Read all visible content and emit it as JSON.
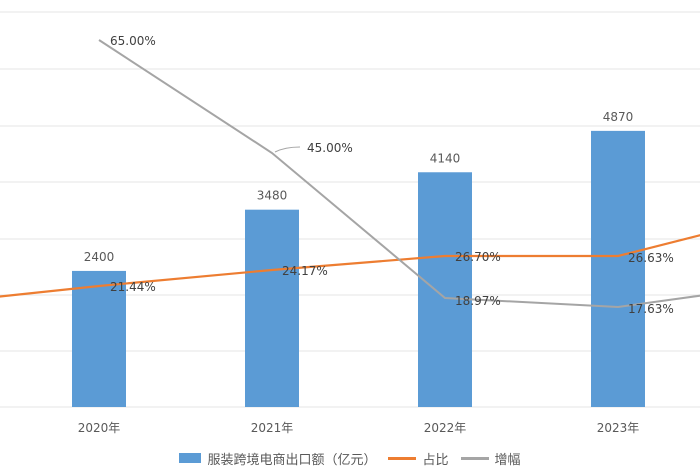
{
  "chart_data": {
    "type": "bar",
    "title": "",
    "xlabel": "",
    "ylabel": "",
    "categories": [
      "2020年",
      "2021年",
      "2022年",
      "2023年"
    ],
    "series": [
      {
        "name": "服装跨境电商出口额（亿元）",
        "kind": "bar",
        "axis": "left",
        "color": "#5b9bd5",
        "values": [
          2400,
          3480,
          4140,
          4870
        ],
        "labels": [
          "2400",
          "3480",
          "4140",
          "4870"
        ]
      },
      {
        "name": "占比",
        "kind": "line",
        "axis": "right",
        "color": "#ed7d31",
        "values": [
          21.44,
          24.17,
          26.7,
          26.63
        ],
        "labels": [
          "21.44%",
          "24.17%",
          "26.70%",
          "26.63%"
        ]
      },
      {
        "name": "增幅",
        "kind": "line",
        "axis": "right",
        "color": "#a5a5a5",
        "values": [
          65.0,
          45.0,
          18.97,
          17.63
        ],
        "labels": [
          "65.00%",
          "45.00%",
          "18.97%",
          "17.63%"
        ]
      }
    ],
    "ylim": [
      0,
      7000
    ],
    "grid": true,
    "legend_position": "bottom",
    "notes": "Image is cropped: y-axis tick labels not visible; lines continue beyond left and right edges."
  },
  "legend": {
    "bar_label": "服装跨境电商出口额（亿元）",
    "share_label": "占比",
    "growth_label": "增幅"
  },
  "colors": {
    "bar": "#5b9bd5",
    "share_line": "#ed7d31",
    "growth_line": "#a5a5a5",
    "grid": "#e4e4e4"
  }
}
